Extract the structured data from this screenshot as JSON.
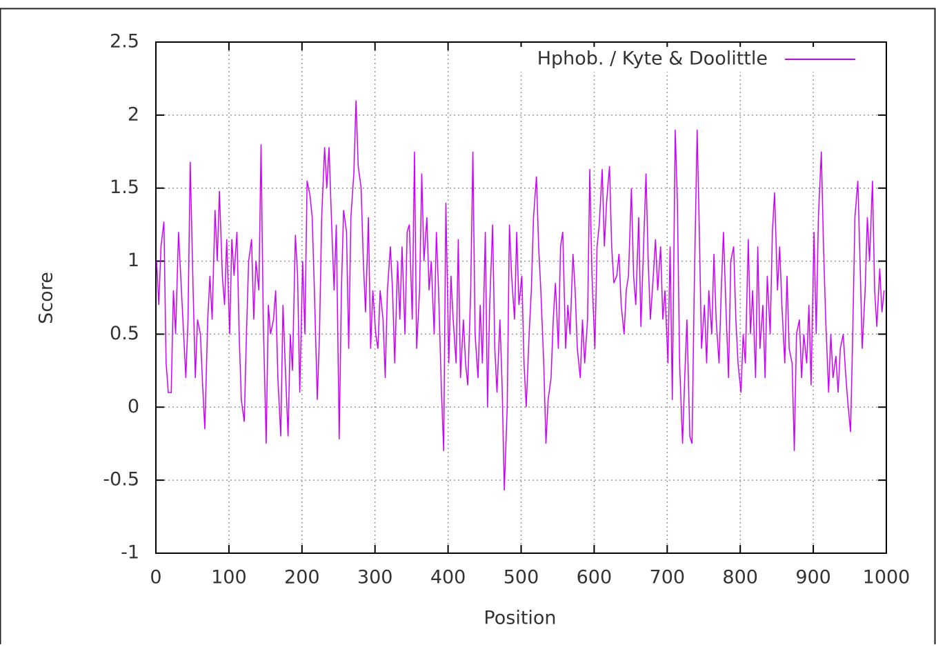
{
  "chart_data": {
    "type": "line",
    "legend_position": "top-right",
    "x_label": "Position",
    "y_label": "Score",
    "xlim": [
      0,
      1000
    ],
    "ylim": [
      -1,
      2.5
    ],
    "xticks": [
      0,
      100,
      200,
      300,
      400,
      500,
      600,
      700,
      800,
      900,
      1000
    ],
    "yticks": [
      -1,
      -0.5,
      0,
      0.5,
      1,
      1.5,
      2,
      2.5
    ],
    "grid": true,
    "x": [
      1,
      4,
      7,
      11,
      14,
      17,
      21,
      24,
      27,
      31,
      34,
      37,
      41,
      44,
      47,
      51,
      54,
      57,
      61,
      64,
      67,
      71,
      74,
      77,
      81,
      84,
      87,
      91,
      94,
      97,
      101,
      104,
      107,
      111,
      114,
      117,
      121,
      124,
      127,
      131,
      134,
      137,
      141,
      144,
      147,
      151,
      154,
      157,
      161,
      164,
      167,
      171,
      174,
      177,
      181,
      184,
      187,
      191,
      194,
      197,
      201,
      204,
      207,
      211,
      214,
      217,
      221,
      224,
      227,
      231,
      234,
      237,
      241,
      244,
      247,
      251,
      254,
      257,
      261,
      264,
      267,
      271,
      274,
      277,
      281,
      284,
      287,
      291,
      294,
      297,
      301,
      304,
      307,
      311,
      314,
      317,
      321,
      324,
      327,
      331,
      334,
      337,
      341,
      344,
      347,
      351,
      354,
      357,
      361,
      364,
      367,
      371,
      374,
      377,
      381,
      384,
      387,
      391,
      394,
      397,
      401,
      404,
      407,
      411,
      414,
      417,
      421,
      424,
      427,
      431,
      434,
      437,
      441,
      444,
      447,
      451,
      454,
      457,
      461,
      464,
      467,
      471,
      474,
      477,
      481,
      484,
      487,
      491,
      494,
      497,
      501,
      504,
      507,
      511,
      514,
      517,
      521,
      524,
      527,
      531,
      534,
      537,
      541,
      544,
      547,
      551,
      554,
      557,
      561,
      564,
      567,
      571,
      574,
      577,
      581,
      584,
      587,
      591,
      594,
      597,
      601,
      604,
      607,
      611,
      614,
      617,
      621,
      624,
      627,
      631,
      634,
      637,
      641,
      644,
      647,
      651,
      654,
      657,
      661,
      664,
      667,
      671,
      674,
      677,
      681,
      684,
      687,
      691,
      694,
      697,
      701,
      704,
      707,
      711,
      714,
      717,
      721,
      724,
      727,
      731,
      734,
      737,
      741,
      744,
      747,
      751,
      754,
      757,
      761,
      764,
      767,
      771,
      774,
      777,
      781,
      784,
      787,
      791,
      794,
      797,
      801,
      804,
      807,
      811,
      814,
      817,
      821,
      824,
      827,
      831,
      834,
      837,
      841,
      844,
      847,
      851,
      854,
      857,
      861,
      864,
      867,
      871,
      874,
      877,
      881,
      884,
      887,
      891,
      894,
      897,
      901,
      904,
      907,
      911,
      914,
      917,
      921,
      924,
      927,
      931,
      934,
      937,
      941,
      944,
      947,
      951,
      954,
      957,
      961,
      964,
      967,
      971,
      974,
      977,
      981,
      984,
      987,
      991,
      994,
      997
    ],
    "series": [
      {
        "name": "Hphob. / Kyte & Doolittle",
        "color": "#cc00ff",
        "values": [
          1.0,
          0.7,
          1.1,
          1.27,
          0.3,
          0.1,
          0.1,
          0.8,
          0.5,
          1.2,
          0.9,
          0.6,
          0.2,
          0.6,
          1.68,
          0.8,
          0.2,
          0.6,
          0.5,
          0.15,
          -0.15,
          0.6,
          0.9,
          0.6,
          1.35,
          1.0,
          1.48,
          0.9,
          0.7,
          1.15,
          0.5,
          1.15,
          0.9,
          1.2,
          0.5,
          0.05,
          -0.1,
          0.5,
          1.0,
          1.15,
          0.6,
          1.0,
          0.8,
          1.8,
          0.6,
          -0.25,
          0.7,
          0.5,
          0.6,
          0.8,
          0.2,
          -0.2,
          0.7,
          0.3,
          -0.2,
          0.5,
          0.25,
          1.18,
          0.9,
          0.1,
          1.0,
          0.5,
          1.55,
          1.45,
          1.3,
          0.8,
          0.05,
          0.5,
          1.3,
          1.78,
          1.5,
          1.78,
          1.2,
          0.8,
          1.25,
          -0.22,
          0.8,
          1.35,
          1.2,
          0.4,
          1.3,
          1.6,
          2.1,
          1.65,
          1.5,
          1.0,
          0.65,
          1.3,
          0.4,
          0.8,
          0.5,
          0.4,
          0.8,
          0.6,
          0.2,
          0.8,
          1.1,
          0.8,
          0.3,
          1.0,
          0.6,
          1.1,
          0.5,
          1.2,
          1.25,
          0.6,
          1.75,
          0.4,
          0.8,
          1.6,
          1.0,
          1.3,
          0.8,
          1.0,
          0.5,
          1.2,
          0.8,
          0.1,
          -0.3,
          1.4,
          0.3,
          0.9,
          0.6,
          0.3,
          1.15,
          0.2,
          0.6,
          0.3,
          0.15,
          0.8,
          1.75,
          0.5,
          0.2,
          0.7,
          0.3,
          1.2,
          0.0,
          0.7,
          1.25,
          0.4,
          0.1,
          0.6,
          0.15,
          -0.57,
          0.0,
          1.25,
          0.9,
          0.6,
          1.2,
          0.7,
          0.9,
          0.3,
          0.0,
          0.5,
          0.8,
          1.3,
          1.58,
          1.1,
          0.8,
          0.3,
          -0.25,
          0.05,
          0.2,
          0.6,
          0.85,
          0.4,
          1.1,
          1.2,
          0.4,
          0.7,
          0.5,
          1.05,
          0.8,
          0.4,
          0.2,
          0.6,
          0.3,
          0.6,
          1.63,
          0.9,
          0.4,
          1.1,
          1.25,
          1.63,
          1.1,
          1.4,
          1.65,
          1.1,
          0.85,
          0.9,
          1.05,
          0.7,
          0.5,
          0.8,
          0.9,
          1.5,
          0.9,
          0.7,
          1.3,
          0.55,
          1.0,
          1.6,
          1.0,
          0.6,
          0.9,
          1.15,
          0.8,
          1.1,
          0.6,
          0.8,
          0.3,
          1.1,
          0.05,
          1.9,
          1.4,
          0.3,
          -0.25,
          0.2,
          0.6,
          -0.2,
          -0.25,
          0.8,
          1.9,
          1.2,
          0.4,
          0.7,
          0.3,
          0.8,
          0.5,
          1.05,
          0.6,
          0.3,
          0.8,
          1.2,
          0.6,
          0.2,
          1.0,
          1.1,
          0.6,
          0.3,
          0.1,
          0.5,
          0.3,
          1.15,
          0.5,
          0.8,
          0.2,
          1.1,
          0.4,
          0.7,
          0.2,
          0.9,
          0.5,
          1.2,
          1.47,
          0.8,
          1.1,
          0.7,
          0.3,
          0.9,
          0.4,
          0.3,
          -0.3,
          0.5,
          0.6,
          0.2,
          0.5,
          0.3,
          0.7,
          0.15,
          1.2,
          0.5,
          1.3,
          1.75,
          1.1,
          0.6,
          0.1,
          0.5,
          0.2,
          0.35,
          0.1,
          0.4,
          0.5,
          0.25,
          0.05,
          -0.17,
          0.5,
          1.3,
          1.55,
          1.0,
          0.4,
          0.8,
          1.3,
          1.0,
          1.55,
          0.8,
          0.55,
          0.95,
          0.65,
          0.8
        ]
      }
    ]
  }
}
